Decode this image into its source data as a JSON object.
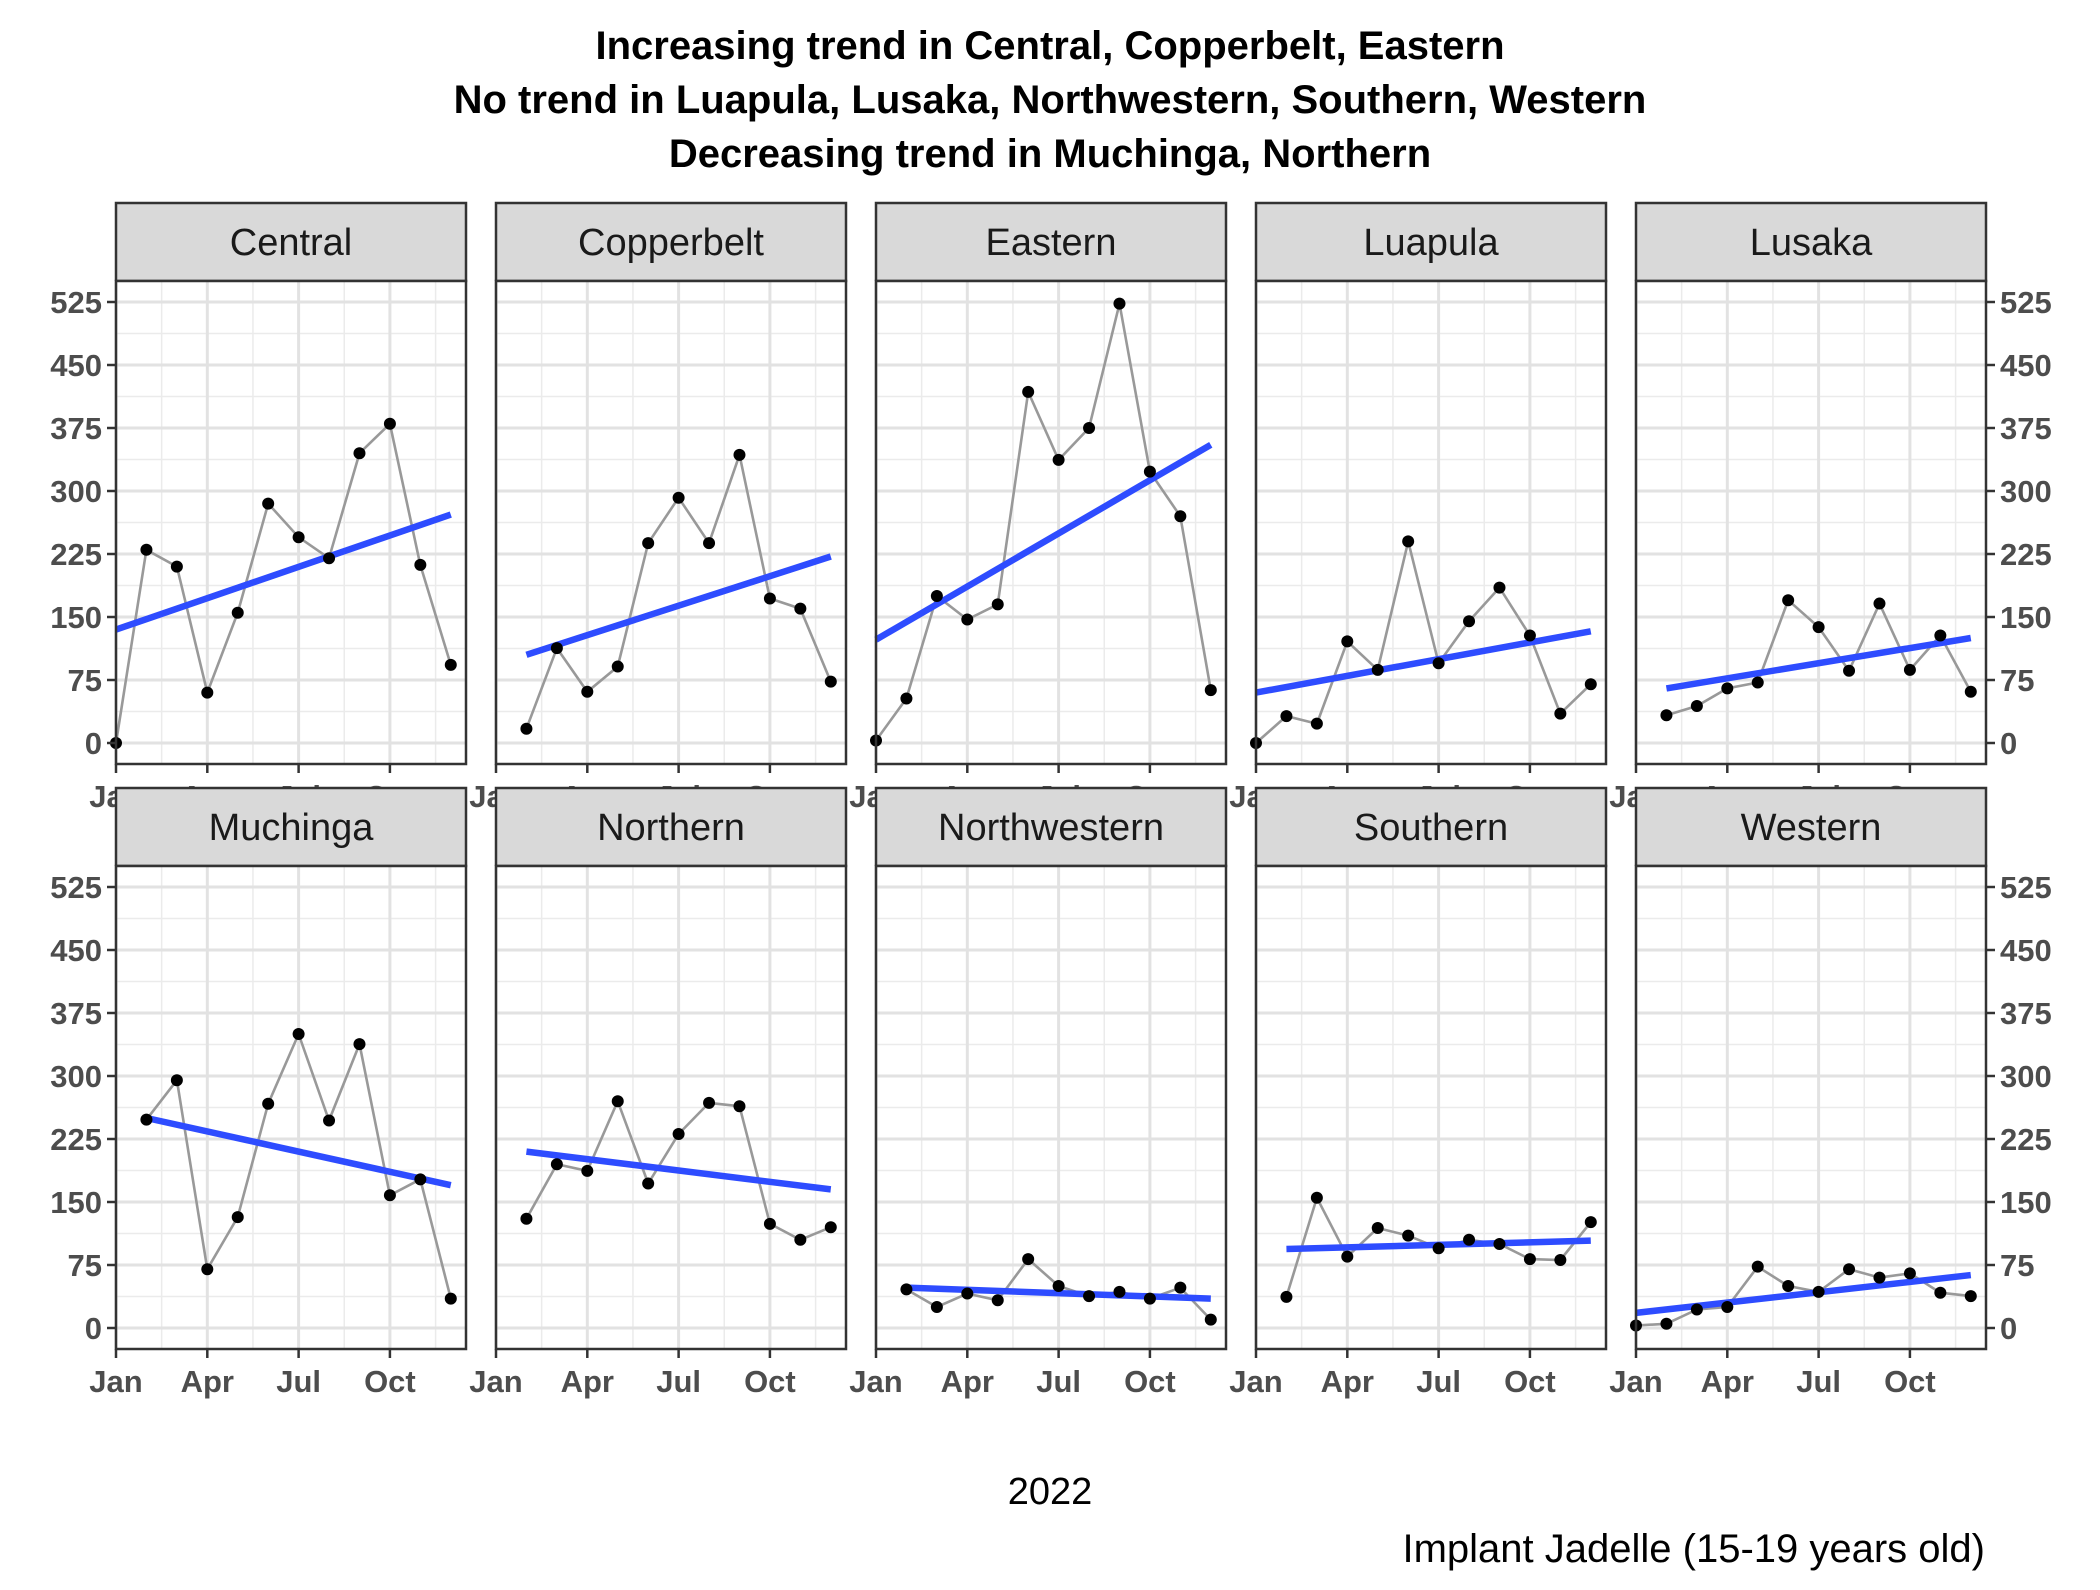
{
  "chart_data": {
    "type": "line",
    "title": [
      "Increasing trend in Central, Copperbelt, Eastern",
      "No trend in Luapula, Lusaka, Northwestern, Southern, Western",
      "Decreasing trend in Muchinga, Northern"
    ],
    "xlabel": "2022",
    "ylabel": "",
    "caption": "Implant Jadelle (15-19 years old)",
    "x_ticks": [
      "Jan",
      "Apr",
      "Jul",
      "Oct"
    ],
    "x_tick_months": [
      1,
      4,
      7,
      10
    ],
    "xlim": [
      1,
      12.5
    ],
    "y_ticks": [
      0,
      75,
      150,
      225,
      300,
      375,
      450,
      525
    ],
    "ylim": [
      -25,
      550
    ],
    "grid": true,
    "layout": "facets 2 rows x 5 columns",
    "series_style": {
      "line_color": "#999999",
      "point_color": "#000000",
      "trend_color": "#2e4cff"
    },
    "panels": [
      {
        "name": "Central",
        "x": [
          1,
          2,
          3,
          4,
          5,
          6,
          7,
          8,
          9,
          10,
          11,
          12
        ],
        "values": [
          0,
          230,
          210,
          60,
          155,
          285,
          245,
          220,
          345,
          380,
          212,
          93
        ],
        "trend": [
          135,
          272
        ]
      },
      {
        "name": "Copperbelt",
        "x": [
          2,
          3,
          4,
          5,
          6,
          7,
          8,
          9,
          10,
          11,
          12
        ],
        "values": [
          17,
          113,
          61,
          91,
          238,
          292,
          238,
          343,
          172,
          160,
          73
        ],
        "trend": [
          105,
          222
        ]
      },
      {
        "name": "Eastern",
        "x": [
          1,
          2,
          3,
          4,
          5,
          6,
          7,
          8,
          9,
          10,
          11,
          12
        ],
        "values": [
          3,
          53,
          175,
          147,
          165,
          418,
          337,
          375,
          523,
          323,
          270,
          63
        ],
        "trend": [
          123,
          355
        ]
      },
      {
        "name": "Luapula",
        "x": [
          1,
          2,
          3,
          4,
          5,
          6,
          7,
          8,
          9,
          10,
          11,
          12
        ],
        "values": [
          0,
          32,
          23,
          121,
          87,
          240,
          95,
          145,
          185,
          128,
          35,
          70
        ],
        "trend": [
          60,
          133
        ]
      },
      {
        "name": "Lusaka",
        "x": [
          2,
          3,
          4,
          5,
          6,
          7,
          8,
          9,
          10,
          11,
          12
        ],
        "values": [
          33,
          44,
          65,
          72,
          170,
          138,
          86,
          166,
          87,
          128,
          61
        ],
        "trend": [
          65,
          125
        ]
      },
      {
        "name": "Muchinga",
        "x": [
          2,
          3,
          4,
          5,
          6,
          7,
          8,
          9,
          10,
          11,
          12
        ],
        "values": [
          248,
          295,
          70,
          132,
          267,
          350,
          247,
          338,
          158,
          177,
          35
        ],
        "trend": [
          250,
          170
        ]
      },
      {
        "name": "Northern",
        "x": [
          2,
          3,
          4,
          5,
          6,
          7,
          8,
          9,
          10,
          11,
          12
        ],
        "values": [
          130,
          195,
          187,
          270,
          172,
          231,
          268,
          264,
          124,
          105,
          120
        ],
        "trend": [
          210,
          165
        ]
      },
      {
        "name": "Northwestern",
        "x": [
          2,
          3,
          4,
          5,
          6,
          7,
          8,
          9,
          10,
          11,
          12
        ],
        "values": [
          46,
          25,
          41,
          33,
          82,
          50,
          38,
          43,
          35,
          48,
          10
        ],
        "trend": [
          48,
          35
        ]
      },
      {
        "name": "Southern",
        "x": [
          2,
          3,
          4,
          5,
          6,
          7,
          8,
          9,
          10,
          11,
          12
        ],
        "values": [
          37,
          155,
          85,
          119,
          110,
          95,
          105,
          100,
          82,
          81,
          126
        ],
        "trend": [
          94,
          104
        ]
      },
      {
        "name": "Western",
        "x": [
          1,
          2,
          3,
          4,
          5,
          6,
          7,
          8,
          9,
          10,
          11,
          12
        ],
        "values": [
          3,
          5,
          22,
          25,
          73,
          50,
          43,
          70,
          60,
          65,
          42,
          38
        ],
        "trend": [
          18,
          63
        ]
      }
    ]
  }
}
